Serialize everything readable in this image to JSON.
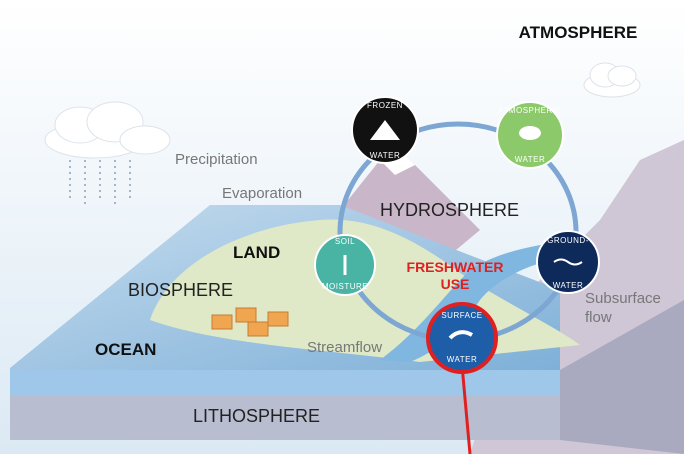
{
  "labels": {
    "atmosphere": "ATMOSPHERE",
    "precipitation": "Precipitation",
    "evaporation": "Evaporation",
    "hydrosphere": "HYDROSPHERE",
    "land": "LAND",
    "biosphere": "BIOSPHERE",
    "ocean": "OCEAN",
    "freshwater_use": [
      "FRESHWATER",
      "USE"
    ],
    "streamflow": "Streamflow",
    "subsurface_flow": [
      "Subsurface",
      "flow"
    ],
    "lithosphere": "LITHOSPHERE"
  },
  "nodes": [
    {
      "top": "FROZEN",
      "bottom": "WATER"
    },
    {
      "top": "ATMOSPHERIC",
      "bottom": "WATER"
    },
    {
      "top": "SOIL",
      "bottom": "MOISTURE"
    },
    {
      "top": "GROUND-",
      "bottom": "WATER"
    },
    {
      "top": "SURFACE",
      "bottom": "WATER"
    }
  ]
}
